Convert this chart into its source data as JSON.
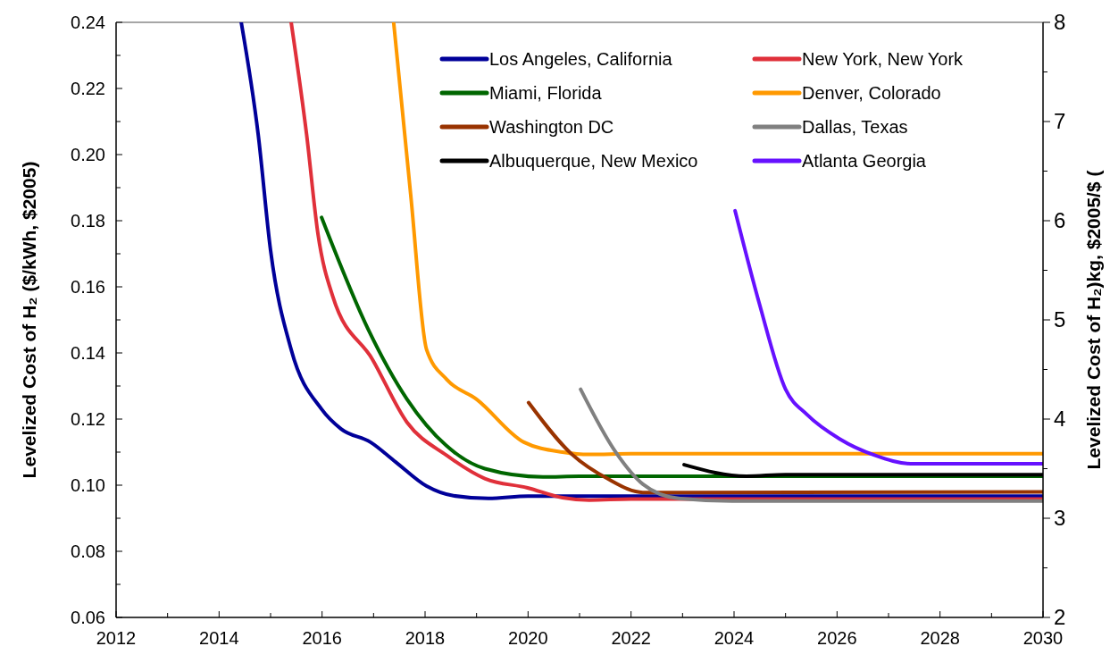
{
  "chart_data": {
    "type": "line",
    "xlabel": null,
    "ylabel": "Levelized Cost of H₂ ($/kWh, $2005)",
    "y2label": "Levelized Cost of H₂)kg, $2005/$ (",
    "xlim": [
      2012,
      2030
    ],
    "xticks": [
      2012,
      {
        "value": 2013,
        "label": null
      },
      2014,
      {
        "value": 2015,
        "label": null
      },
      2016,
      {
        "value": 2017,
        "label": null
      },
      2018,
      {
        "value": 2019,
        "label": null
      },
      2020,
      {
        "value": 2021,
        "label": null
      },
      2022,
      {
        "value": 2023,
        "label": null
      },
      2024,
      {
        "value": 2025,
        "label": null
      },
      2026,
      {
        "value": 2027,
        "label": null
      },
      2028,
      {
        "value": 2029,
        "label": null
      },
      2030
    ],
    "ylim": [
      0.06,
      0.24
    ],
    "yticks": [
      {
        "value": 0.06,
        "label": "0.06"
      },
      {
        "value": 0.07,
        "label": null
      },
      {
        "value": 0.08,
        "label": "0.08"
      },
      {
        "value": 0.09,
        "label": null
      },
      {
        "value": 0.1,
        "label": "0.10"
      },
      {
        "value": 0.11,
        "label": null
      },
      {
        "value": 0.12,
        "label": "0.12"
      },
      {
        "value": 0.13,
        "label": null
      },
      {
        "value": 0.14,
        "label": "0.14"
      },
      {
        "value": 0.15,
        "label": null
      },
      {
        "value": 0.16,
        "label": "0.16"
      },
      {
        "value": 0.17,
        "label": null
      },
      {
        "value": 0.18,
        "label": "0.18"
      },
      {
        "value": 0.19,
        "label": null
      },
      {
        "value": 0.2,
        "label": "0.20"
      },
      {
        "value": 0.21,
        "label": null
      },
      {
        "value": 0.22,
        "label": "0.22"
      },
      {
        "value": 0.23,
        "label": null
      },
      {
        "value": 0.24,
        "label": "0.24"
      }
    ],
    "y2lim": [
      2,
      8
    ],
    "y2ticks": [
      2,
      {
        "value": 2.5,
        "label": null
      },
      3,
      {
        "value": 3.5,
        "label": null
      },
      4,
      {
        "value": 4.5,
        "label": null
      },
      5,
      {
        "value": 5.5,
        "label": null
      },
      6,
      {
        "value": 6.5,
        "label": null
      },
      7,
      {
        "value": 7.5,
        "label": null
      },
      8
    ],
    "grid": false,
    "legend": "top right",
    "marker": "none",
    "line_style": "solid",
    "series": [
      {
        "name": "Los Angeles, California",
        "color": "#000099",
        "x": [
          2014.43,
          2014.76,
          2015.0,
          2015.4,
          2015.99,
          2016.37,
          2016.94,
          2017.43,
          2018.03,
          2018.55,
          2019.23,
          2020,
          2030
        ],
        "values": [
          0.24,
          0.206,
          0.171,
          0.141,
          0.123,
          0.117,
          0.113,
          0.107,
          0.0997,
          0.0968,
          0.096,
          0.0967,
          0.0967
        ]
      },
      {
        "name": "New York, New York",
        "color": "#e0303a",
        "x": [
          2015.4,
          2015.7,
          2015.92,
          2016.21,
          2016.98,
          2017.65,
          2018.42,
          2019.16,
          2019.99,
          2020.67,
          2021.19,
          2022,
          2030
        ],
        "values": [
          0.24,
          0.206,
          0.176,
          0.157,
          0.138,
          0.119,
          0.109,
          0.102,
          0.0992,
          0.0962,
          0.0955,
          0.0958,
          0.0958
        ]
      },
      {
        "name": "Miami, Florida",
        "color": "#006600",
        "x": [
          2015.99,
          2016.9,
          2017.65,
          2018.41,
          2019.16,
          2020.29,
          2021,
          2030
        ],
        "values": [
          0.181,
          0.147,
          0.126,
          0.112,
          0.105,
          0.1025,
          0.1027,
          0.1027
        ]
      },
      {
        "name": "Denver, Colorado",
        "color": "#ff9900",
        "x": [
          2017.39,
          2017.72,
          2018.03,
          2018.42,
          2019.0,
          2019.92,
          2020.67,
          2021.19,
          2022,
          2030
        ],
        "values": [
          0.24,
          0.188,
          0.141,
          0.132,
          0.126,
          0.113,
          0.11,
          0.1093,
          0.1095,
          0.1095
        ]
      },
      {
        "name": "Washington DC",
        "color": "#993300",
        "x": [
          2020.01,
          2020.84,
          2021.54,
          2022.23,
          2023.06,
          2030
        ],
        "values": [
          0.125,
          0.1095,
          0.102,
          0.0978,
          0.0978,
          0.098
        ]
      },
      {
        "name": "Dallas, Texas",
        "color": "#808080",
        "x": [
          2021.02,
          2021.68,
          2022.23,
          2022.92,
          2023.96,
          2030
        ],
        "values": [
          0.129,
          0.1105,
          0.1003,
          0.096,
          0.0952,
          0.0952
        ]
      },
      {
        "name": "Albuquerque, New Mexico",
        "color": "#000000",
        "x": [
          2023.03,
          2024.24,
          2025,
          2030
        ],
        "values": [
          0.1062,
          0.1027,
          0.1032,
          0.1032
        ]
      },
      {
        "name": "Atlanta Georgia",
        "color": "#6611ff",
        "x": [
          2024.02,
          2024.49,
          2025.0,
          2025.42,
          2026.05,
          2026.74,
          2027.43,
          2030
        ],
        "values": [
          0.183,
          0.155,
          0.129,
          0.1213,
          0.114,
          0.109,
          0.1065,
          0.1065
        ]
      }
    ]
  }
}
